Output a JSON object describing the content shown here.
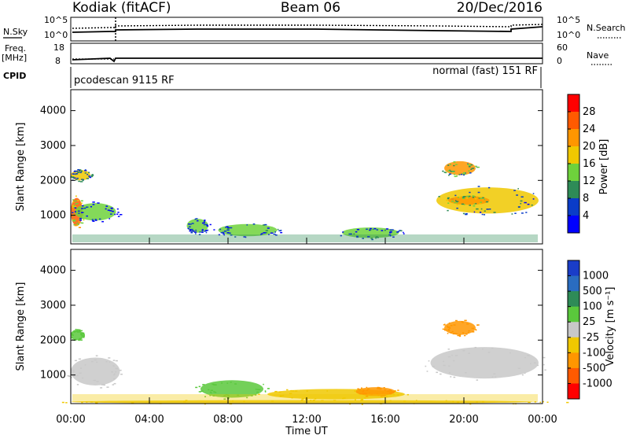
{
  "header": {
    "radar": "Kodiak (fitACF)",
    "beam": "Beam 06",
    "date": "20/Dec/2016"
  },
  "nsky_panel": {
    "left_label": "N.Sky",
    "right_label": "N.Search",
    "left_ticks": [
      "10^5",
      "10^0"
    ],
    "right_ticks": [
      "10^5",
      "10^0"
    ]
  },
  "freq_panel": {
    "left_label_1": "Freq.",
    "left_label_2": "[MHz]",
    "right_label": "Nave",
    "left_ticks": [
      "18",
      "8"
    ],
    "right_ticks": [
      "60",
      "0"
    ]
  },
  "cpid_panel": {
    "label": "CPID",
    "left_mode": "pcodescan 9115 RF",
    "right_mode": "normal (fast) 151 RF"
  },
  "x_axis": {
    "label": "Time UT",
    "ticks": [
      "00:00",
      "04:00",
      "08:00",
      "12:00",
      "16:00",
      "20:00",
      "00:00"
    ]
  },
  "power_colorbar": {
    "label": "Power [dB]",
    "ticks": [
      "28",
      "24",
      "20",
      "16",
      "12",
      "8",
      "4"
    ],
    "colors": [
      "#ff0000",
      "#ff5a00",
      "#ff9600",
      "#f0c800",
      "#6ed23c",
      "#2e8b57",
      "#0a3cc8",
      "#0000ff"
    ]
  },
  "velocity_colorbar": {
    "label": "Velocity [m s⁻¹]",
    "ticks": [
      "1000",
      "500",
      "100",
      "25",
      "-25",
      "-100",
      "-500",
      "-1000"
    ],
    "colors": [
      "#1a3dc8",
      "#2a6cc0",
      "#2e8b57",
      "#5ac83c",
      "#c8c8c8",
      "#f0c800",
      "#ff9600",
      "#ff5a00",
      "#ff0000"
    ]
  },
  "chart_data": [
    {
      "type": "heatmap",
      "title": "Power",
      "xlabel": "Time UT",
      "ylabel": "Slant Range [km]",
      "xlim": [
        "00:00",
        "24:00"
      ],
      "ylim": [
        180,
        4600
      ],
      "yticks": [
        1000,
        2000,
        3000,
        4000
      ],
      "yticklabels": [
        "1000",
        "2000",
        "3000",
        "4000"
      ],
      "colorbar_label": "Power [dB]",
      "colorbar_ticks": [
        4,
        8,
        12,
        16,
        20,
        24,
        28
      ],
      "blobs": [
        {
          "t0": 0.0,
          "t1": 0.6,
          "r0": 700,
          "r1": 1500,
          "level": 26
        },
        {
          "t0": 0.2,
          "t1": 2.3,
          "r0": 850,
          "r1": 1350,
          "level": 12
        },
        {
          "t0": 0.0,
          "t1": 1.0,
          "r0": 2000,
          "r1": 2300,
          "level": 16
        },
        {
          "t0": 5.9,
          "t1": 7.0,
          "r0": 500,
          "r1": 900,
          "level": 12
        },
        {
          "t0": 7.5,
          "t1": 10.5,
          "r0": 400,
          "r1": 750,
          "level": 14
        },
        {
          "t0": 13.8,
          "t1": 16.7,
          "r0": 350,
          "r1": 650,
          "level": 14
        },
        {
          "t0": 19.0,
          "t1": 20.6,
          "r0": 2150,
          "r1": 2550,
          "level": 20
        },
        {
          "t0": 18.6,
          "t1": 23.8,
          "r0": 1050,
          "r1": 1800,
          "level": 16
        },
        {
          "t0": 19.2,
          "t1": 21.3,
          "r0": 1300,
          "r1": 1550,
          "level": 22
        }
      ]
    },
    {
      "type": "heatmap",
      "title": "Velocity",
      "xlabel": "Time UT",
      "ylabel": "Slant Range [km]",
      "xlim": [
        "00:00",
        "24:00"
      ],
      "ylim": [
        180,
        4600
      ],
      "yticks": [
        1000,
        2000,
        3000,
        4000
      ],
      "yticklabels": [
        "1000",
        "2000",
        "3000",
        "4000"
      ],
      "colorbar_label": "Velocity [m s⁻¹]",
      "colorbar_ticks": [
        1000,
        500,
        100,
        25,
        -25,
        -100,
        -500,
        -1000
      ],
      "blobs": [
        {
          "t0": 0.0,
          "t1": 2.5,
          "r0": 700,
          "r1": 1500,
          "level": 0
        },
        {
          "t0": 0.0,
          "t1": 0.6,
          "r0": 2000,
          "r1": 2300,
          "level": 60
        },
        {
          "t0": 6.6,
          "t1": 9.8,
          "r0": 350,
          "r1": 850,
          "level": 60
        },
        {
          "t0": 10.0,
          "t1": 17.0,
          "r0": 300,
          "r1": 600,
          "level": -60
        },
        {
          "t0": 14.5,
          "t1": 16.5,
          "r0": 400,
          "r1": 650,
          "level": -300
        },
        {
          "t0": 19.0,
          "t1": 20.6,
          "r0": 2150,
          "r1": 2550,
          "level": -300
        },
        {
          "t0": 18.3,
          "t1": 23.8,
          "r0": 900,
          "r1": 1800,
          "level": 0
        },
        {
          "t0": 0.0,
          "t1": 23.5,
          "r0": 180,
          "r1": 280,
          "level": -60
        }
      ]
    }
  ]
}
